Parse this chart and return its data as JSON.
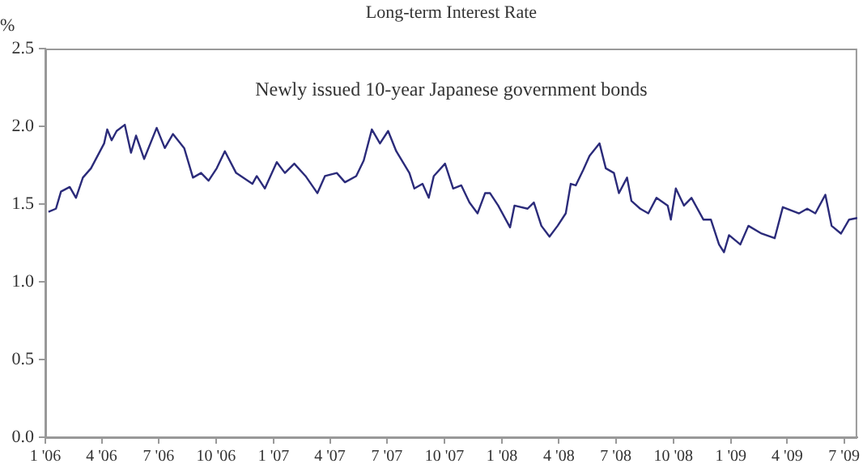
{
  "chart_data": {
    "type": "line",
    "title": "Long-term Interest Rate",
    "ylabel": "%",
    "annotations": [
      "Newly issued 10-year Japanese government bonds"
    ],
    "x": [
      "2006-01-06",
      "2006-01-18",
      "2006-01-26",
      "2006-02-09",
      "2006-02-19",
      "2006-03-02",
      "2006-03-15",
      "2006-04-05",
      "2006-04-10",
      "2006-04-17",
      "2006-04-25",
      "2006-05-08",
      "2006-05-18",
      "2006-05-26",
      "2006-06-08",
      "2006-06-28",
      "2006-07-11",
      "2006-07-24",
      "2006-08-11",
      "2006-08-25",
      "2006-09-07",
      "2006-09-19",
      "2006-10-02",
      "2006-10-15",
      "2006-11-02",
      "2006-11-28",
      "2006-12-05",
      "2006-12-18",
      "2007-01-06",
      "2007-01-19",
      "2007-02-03",
      "2007-02-21",
      "2007-03-12",
      "2007-03-24",
      "2007-04-12",
      "2007-04-25",
      "2007-05-13",
      "2007-05-25",
      "2007-06-07",
      "2007-06-20",
      "2007-07-03",
      "2007-07-16",
      "2007-08-06",
      "2007-08-14",
      "2007-08-27",
      "2007-09-06",
      "2007-09-14",
      "2007-10-02",
      "2007-10-15",
      "2007-10-28",
      "2007-11-10",
      "2007-11-23",
      "2007-12-05",
      "2007-12-13",
      "2007-12-26",
      "2008-01-14",
      "2008-01-21",
      "2008-02-11",
      "2008-02-21",
      "2008-03-04",
      "2008-03-17",
      "2008-03-30",
      "2008-04-12",
      "2008-04-20",
      "2008-04-28",
      "2008-05-10",
      "2008-05-20",
      "2008-06-05",
      "2008-06-15",
      "2008-06-28",
      "2008-07-06",
      "2008-07-19",
      "2008-07-26",
      "2008-08-09",
      "2008-08-22",
      "2008-09-04",
      "2008-09-22",
      "2008-09-27",
      "2008-10-05",
      "2008-10-18",
      "2008-10-30",
      "2008-11-18",
      "2008-11-30",
      "2008-12-13",
      "2008-12-21",
      "2008-12-29",
      "2009-01-16",
      "2009-01-29",
      "2009-02-19",
      "2009-03-12",
      "2009-03-25",
      "2009-04-20",
      "2009-05-03",
      "2009-05-16",
      "2009-06-01",
      "2009-06-11",
      "2009-06-26",
      "2009-07-09",
      "2009-07-22"
    ],
    "series": [
      {
        "color": "#2b2b7a",
        "values": [
          1.45,
          1.47,
          1.58,
          1.61,
          1.54,
          1.67,
          1.73,
          1.89,
          1.98,
          1.91,
          1.97,
          2.01,
          1.83,
          1.94,
          1.79,
          1.99,
          1.86,
          1.95,
          1.86,
          1.67,
          1.7,
          1.65,
          1.73,
          1.84,
          1.7,
          1.63,
          1.68,
          1.6,
          1.77,
          1.7,
          1.76,
          1.68,
          1.57,
          1.68,
          1.7,
          1.64,
          1.68,
          1.78,
          1.98,
          1.89,
          1.97,
          1.84,
          1.7,
          1.6,
          1.63,
          1.54,
          1.68,
          1.76,
          1.6,
          1.62,
          1.51,
          1.44,
          1.57,
          1.57,
          1.49,
          1.35,
          1.49,
          1.47,
          1.51,
          1.36,
          1.29,
          1.36,
          1.44,
          1.63,
          1.62,
          1.72,
          1.81,
          1.89,
          1.73,
          1.7,
          1.57,
          1.67,
          1.52,
          1.47,
          1.44,
          1.54,
          1.49,
          1.4,
          1.6,
          1.49,
          1.54,
          1.4,
          1.4,
          1.24,
          1.19,
          1.3,
          1.24,
          1.36,
          1.31,
          1.28,
          1.48,
          1.44,
          1.47,
          1.44,
          1.56,
          1.36,
          1.31,
          1.4,
          1.41
        ]
      }
    ],
    "xlim": [
      "2006-01-01",
      "2009-07-22"
    ],
    "xticks": [
      {
        "value": "2006-01",
        "label": "1 '06"
      },
      {
        "value": "2006-04",
        "label": "4 '06"
      },
      {
        "value": "2006-07",
        "label": "7 '06"
      },
      {
        "value": "2006-10",
        "label": "10 '06"
      },
      {
        "value": "2007-01",
        "label": "1 '07"
      },
      {
        "value": "2007-04",
        "label": "4 '07"
      },
      {
        "value": "2007-07",
        "label": "7 '07"
      },
      {
        "value": "2007-10",
        "label": "10 '07"
      },
      {
        "value": "2008-01",
        "label": "1 '08"
      },
      {
        "value": "2008-04",
        "label": "4 '08"
      },
      {
        "value": "2008-07",
        "label": "7 '08"
      },
      {
        "value": "2008-10",
        "label": "10 '08"
      },
      {
        "value": "2009-01",
        "label": "1 '09"
      },
      {
        "value": "2009-04",
        "label": "4 '09"
      },
      {
        "value": "2009-07",
        "label": "7 '09"
      }
    ],
    "ylim": [
      0,
      2.5
    ],
    "yticks": [
      {
        "value": 0,
        "label": "0.0"
      },
      {
        "value": 0.5,
        "label": "0.5"
      },
      {
        "value": 1,
        "label": "1.0"
      },
      {
        "value": 1.5,
        "label": "1.5"
      },
      {
        "value": 2,
        "label": "2.0"
      },
      {
        "value": 2.5,
        "label": "2.5"
      }
    ],
    "grid": false,
    "legend": false,
    "marker": "none",
    "line_style": "solid"
  }
}
